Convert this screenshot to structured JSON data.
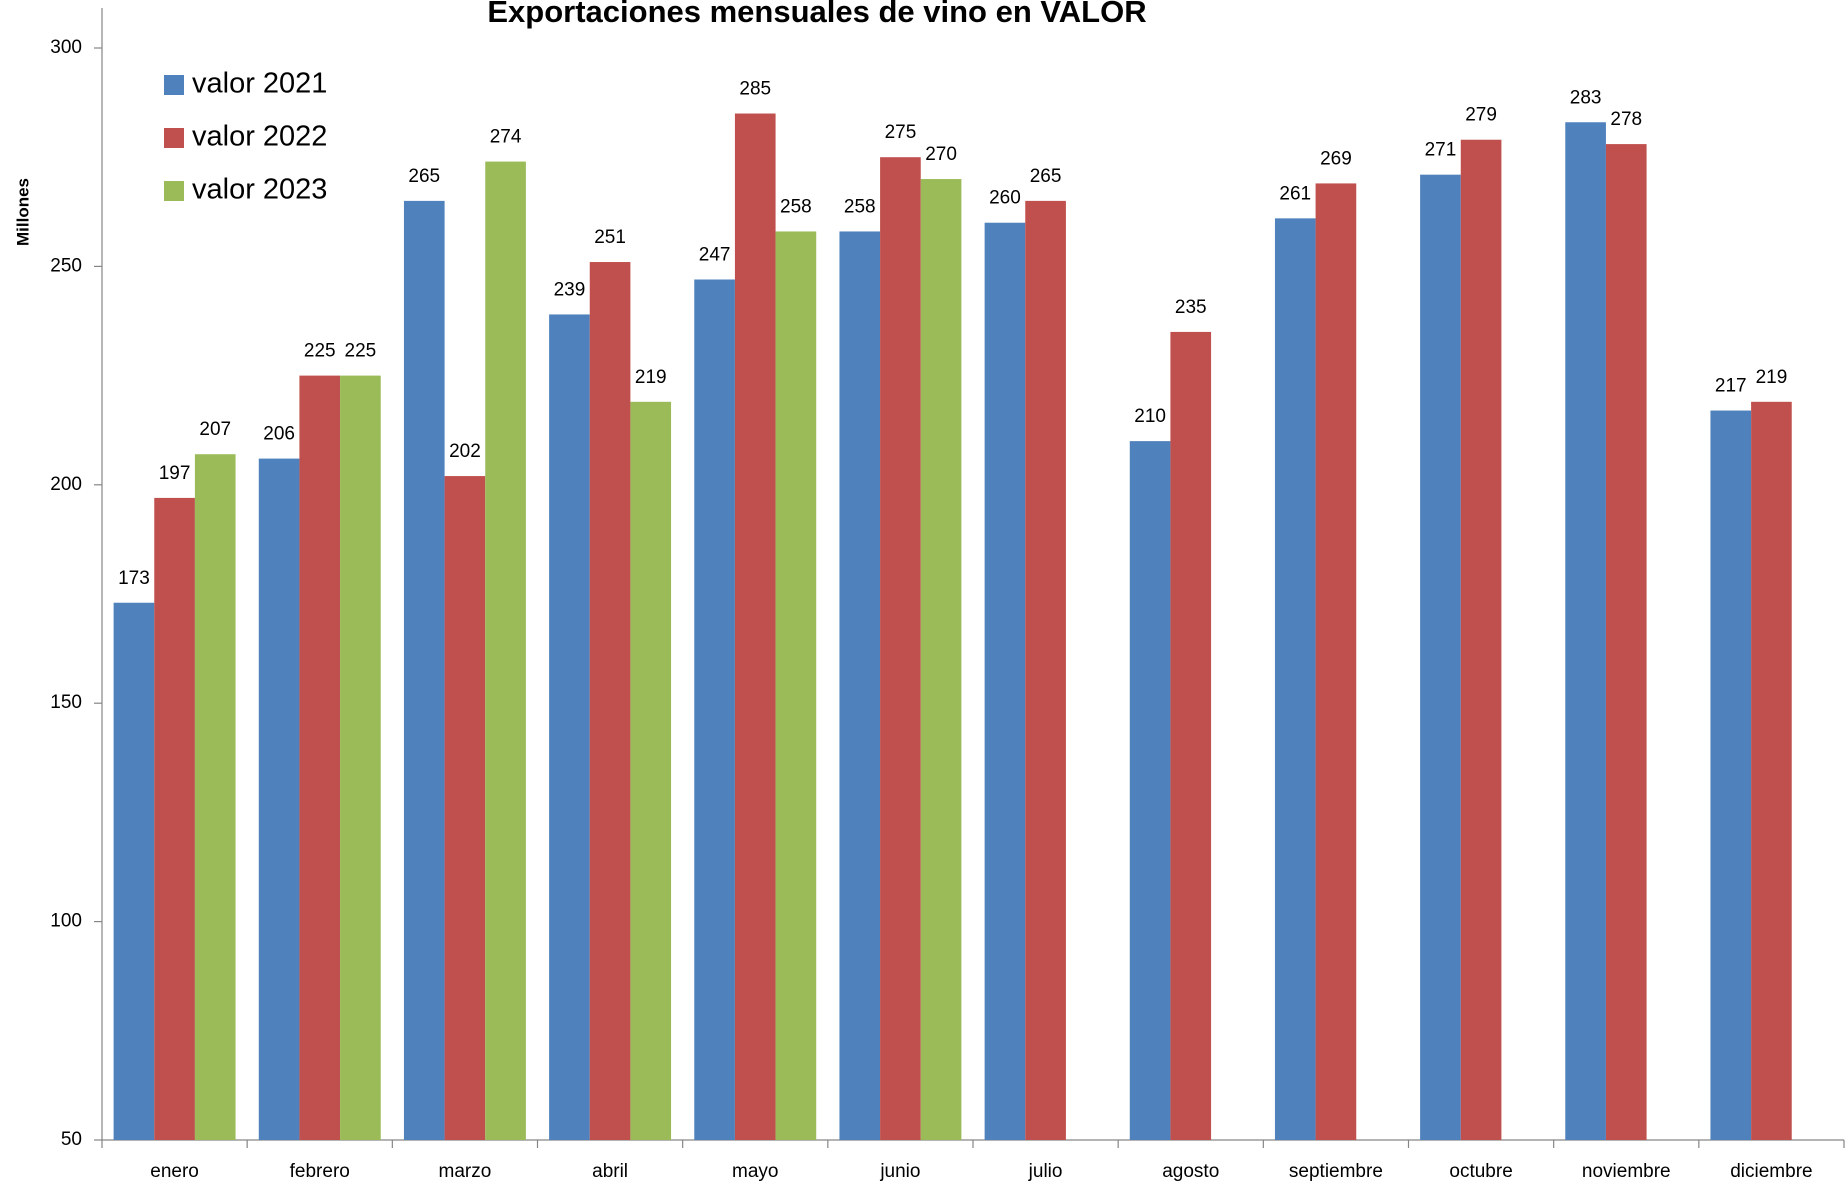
{
  "chart_data": {
    "type": "bar",
    "title": "Exportaciones mensuales de vino en VALOR",
    "y_label": "Millones",
    "categories": [
      "enero",
      "febrero",
      "marzo",
      "abril",
      "mayo",
      "junio",
      "julio",
      "agosto",
      "septiembre",
      "octubre",
      "noviembre",
      "diciembre"
    ],
    "series": [
      {
        "name": "valor 2021",
        "color": "#4f81bd",
        "values": [
          173,
          206,
          265,
          239,
          247,
          258,
          260,
          210,
          261,
          271,
          283,
          217
        ]
      },
      {
        "name": "valor 2022",
        "color": "#c0504d",
        "values": [
          197,
          225,
          202,
          251,
          285,
          275,
          265,
          235,
          269,
          279,
          278,
          219
        ]
      },
      {
        "name": "valor 2023",
        "color": "#9bbb59",
        "values": [
          207,
          225,
          274,
          219,
          258,
          270,
          null,
          null,
          null,
          null,
          null,
          null
        ]
      }
    ],
    "ylim": [
      50,
      300
    ],
    "yticks": [
      50,
      100,
      150,
      200,
      250,
      300
    ],
    "grid": false,
    "legend": "top-left"
  }
}
